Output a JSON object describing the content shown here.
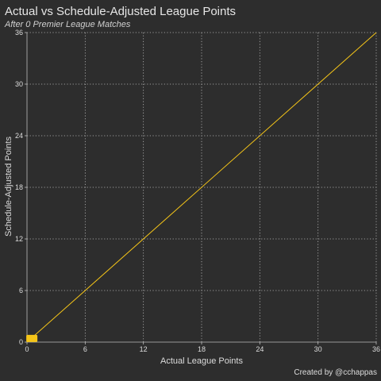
{
  "chart_data": {
    "type": "scatter",
    "title": "Actual vs Schedule-Adjusted League Points",
    "subtitle": "After 0 Premier League Matches",
    "xlabel": "Actual League Points",
    "ylabel": "Schedule-Adjusted Points",
    "caption": "Created by @cchappas",
    "xlim": [
      0,
      36
    ],
    "ylim": [
      0,
      36
    ],
    "xticks": [
      0,
      6,
      12,
      18,
      24,
      30,
      36
    ],
    "yticks": [
      0,
      6,
      12,
      18,
      24,
      30,
      36
    ],
    "grid": true,
    "reference_line": {
      "x": [
        0,
        36
      ],
      "y": [
        0,
        36
      ],
      "color": "#f5c518"
    },
    "points": [
      {
        "x": 0.5,
        "y": 0.2,
        "color": "#f5c518"
      }
    ],
    "colors": {
      "background": "#2d2d2d",
      "panel": "#2d2d2d",
      "accent": "#f5c518",
      "grid": "#bdbdbd",
      "text": "#e6e6e6"
    }
  }
}
